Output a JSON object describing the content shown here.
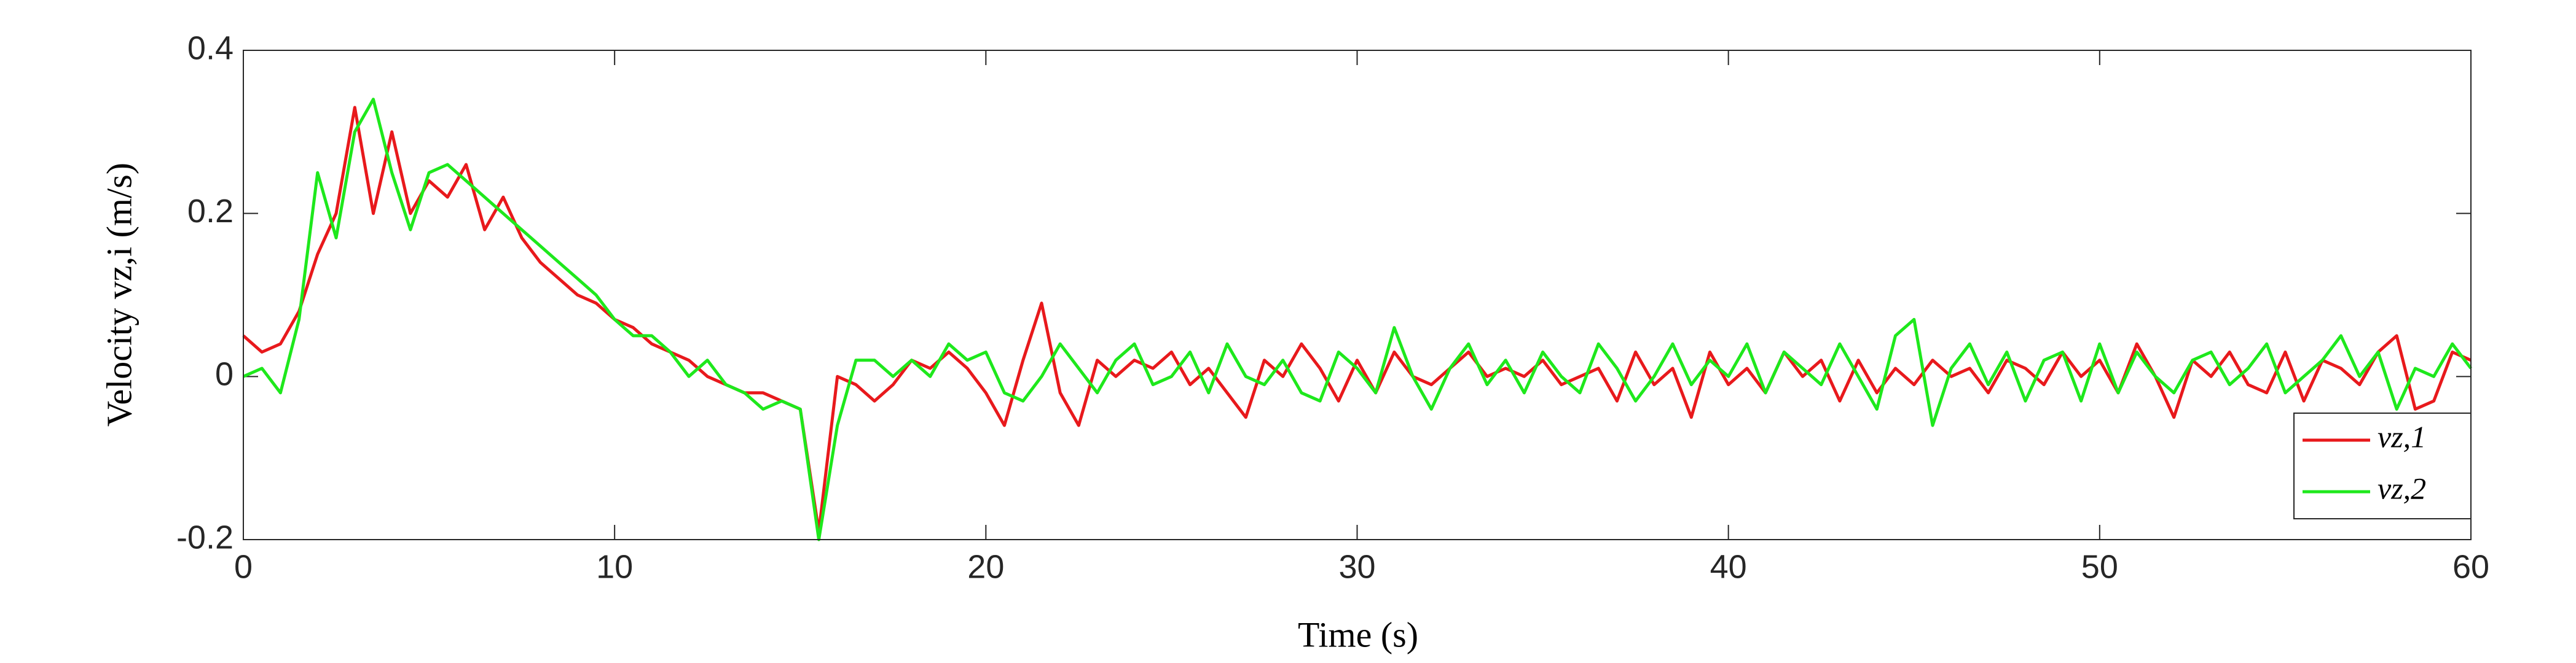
{
  "chart_data": {
    "type": "line",
    "xlabel": "Time (s)",
    "ylabel": "Velocity vz,i (m/s)",
    "xlim": [
      0,
      60
    ],
    "ylim": [
      -0.2,
      0.4
    ],
    "xticks": [
      0,
      10,
      20,
      30,
      40,
      50,
      60
    ],
    "yticks": [
      -0.2,
      0,
      0.2,
      0.4
    ],
    "legend": "lower right",
    "x": [
      0,
      0.5,
      1,
      1.5,
      2,
      2.5,
      3,
      3.5,
      4,
      4.5,
      5,
      5.5,
      6,
      6.5,
      7,
      7.5,
      8,
      8.5,
      9,
      9.5,
      10,
      10.5,
      11,
      11.5,
      12,
      12.5,
      13,
      13.5,
      14,
      14.5,
      15,
      15.5,
      16,
      16.5,
      17,
      17.5,
      18,
      18.5,
      19,
      19.5,
      20,
      20.5,
      21,
      21.5,
      22,
      22.5,
      23,
      23.5,
      24,
      24.5,
      25,
      25.5,
      26,
      26.5,
      27,
      27.5,
      28,
      28.5,
      29,
      29.5,
      30,
      30.5,
      31,
      31.5,
      32,
      32.5,
      33,
      33.5,
      34,
      34.5,
      35,
      35.5,
      36,
      36.5,
      37,
      37.5,
      38,
      38.5,
      39,
      39.5,
      40,
      40.5,
      41,
      41.5,
      42,
      42.5,
      43,
      43.5,
      44,
      44.5,
      45,
      45.5,
      46,
      46.5,
      47,
      47.5,
      48,
      48.5,
      49,
      49.5,
      50,
      50.5,
      51,
      51.5,
      52,
      52.5,
      53,
      53.5,
      54,
      54.5,
      55,
      55.5,
      56,
      56.5,
      57,
      57.5,
      58,
      58.5,
      59,
      59.5,
      60
    ],
    "series": [
      {
        "name": "vz,1",
        "color": "#e8191c",
        "values": [
          0.05,
          0.03,
          0.04,
          0.08,
          0.15,
          0.2,
          0.33,
          0.2,
          0.3,
          0.2,
          0.24,
          0.22,
          0.26,
          0.18,
          0.22,
          0.17,
          0.14,
          0.12,
          0.1,
          0.09,
          0.07,
          0.06,
          0.04,
          0.03,
          0.02,
          0.0,
          -0.01,
          -0.02,
          -0.02,
          -0.03,
          -0.04,
          -0.19,
          0.0,
          -0.01,
          -0.03,
          -0.01,
          0.02,
          0.01,
          0.03,
          0.01,
          -0.02,
          -0.06,
          0.02,
          0.09,
          -0.02,
          -0.06,
          0.02,
          0.0,
          0.02,
          0.01,
          0.03,
          -0.01,
          0.01,
          -0.02,
          -0.05,
          0.02,
          0.0,
          0.04,
          0.01,
          -0.03,
          0.02,
          -0.02,
          0.03,
          0.0,
          -0.01,
          0.01,
          0.03,
          0.0,
          0.01,
          0.0,
          0.02,
          -0.01,
          0.0,
          0.01,
          -0.03,
          0.03,
          -0.01,
          0.01,
          -0.05,
          0.03,
          -0.01,
          0.01,
          -0.02,
          0.03,
          0.0,
          0.02,
          -0.03,
          0.02,
          -0.02,
          0.01,
          -0.01,
          0.02,
          0.0,
          0.01,
          -0.02,
          0.02,
          0.01,
          -0.01,
          0.03,
          0.0,
          0.02,
          -0.02,
          0.04,
          0.0,
          -0.05,
          0.02,
          0.0,
          0.03,
          -0.01,
          -0.02,
          0.03,
          -0.03,
          0.02,
          0.01,
          -0.01,
          0.03,
          0.05,
          -0.04,
          -0.03,
          0.03,
          0.02
        ]
      },
      {
        "name": "vz,2",
        "color": "#1ee81c",
        "values": [
          0.0,
          0.01,
          -0.02,
          0.07,
          0.25,
          0.17,
          0.3,
          0.34,
          0.25,
          0.18,
          0.25,
          0.26,
          0.24,
          0.22,
          0.2,
          0.18,
          0.16,
          0.14,
          0.12,
          0.1,
          0.07,
          0.05,
          0.05,
          0.03,
          0.0,
          0.02,
          -0.01,
          -0.02,
          -0.04,
          -0.03,
          -0.04,
          -0.2,
          -0.06,
          0.02,
          0.02,
          0.0,
          0.02,
          0.0,
          0.04,
          0.02,
          0.03,
          -0.02,
          -0.03,
          0.0,
          0.04,
          0.01,
          -0.02,
          0.02,
          0.04,
          -0.01,
          0.0,
          0.03,
          -0.02,
          0.04,
          0.0,
          -0.01,
          0.02,
          -0.02,
          -0.03,
          0.03,
          0.01,
          -0.02,
          0.06,
          0.0,
          -0.04,
          0.01,
          0.04,
          -0.01,
          0.02,
          -0.02,
          0.03,
          0.0,
          -0.02,
          0.04,
          0.01,
          -0.03,
          0.0,
          0.04,
          -0.01,
          0.02,
          0.0,
          0.04,
          -0.02,
          0.03,
          0.01,
          -0.01,
          0.04,
          0.0,
          -0.04,
          0.05,
          0.07,
          -0.06,
          0.01,
          0.04,
          -0.01,
          0.03,
          -0.03,
          0.02,
          0.03,
          -0.03,
          0.04,
          -0.02,
          0.03,
          0.0,
          -0.02,
          0.02,
          0.03,
          -0.01,
          0.01,
          0.04,
          -0.02,
          0.0,
          0.02,
          0.05,
          0.0,
          0.03,
          -0.04,
          0.01,
          0.0,
          0.04,
          0.01
        ]
      }
    ]
  }
}
